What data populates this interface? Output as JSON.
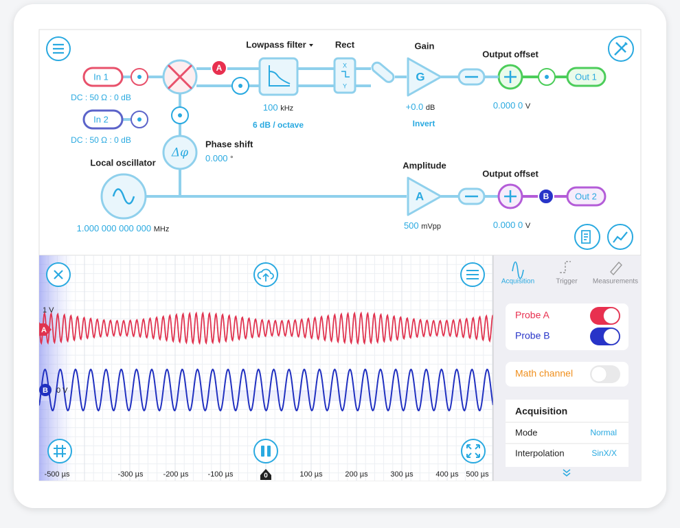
{
  "block_diagram": {
    "inputs": [
      {
        "label": "In 1",
        "coupling": "DC : 50 Ω : 0 dB",
        "color": "#e8516b"
      },
      {
        "label": "In 2",
        "coupling": "DC : 50 Ω : 0 dB",
        "color": "#5b63c9"
      }
    ],
    "probe_badges": [
      {
        "label": "A",
        "color": "#e8304f"
      },
      {
        "label": "B",
        "color": "#2734c8"
      }
    ],
    "lowpass": {
      "title": "Lowpass filter",
      "value": "100",
      "unit": "kHz",
      "slope": "6 dB / octave"
    },
    "rect": {
      "title": "Rect",
      "symbols": [
        "X",
        "Y"
      ]
    },
    "gain": {
      "title": "Gain",
      "symbol": "G",
      "value": "+0.0",
      "unit": "dB",
      "mode": "Invert"
    },
    "output_offset_1": {
      "title": "Output offset",
      "value": "0.000 0",
      "unit": "V"
    },
    "output_1": "Out 1",
    "phase_shift": {
      "title": "Phase shift",
      "symbol": "Δφ",
      "value": "0.000",
      "unit": "°"
    },
    "local_oscillator": {
      "title": "Local oscillator",
      "value": "1.000 000 000 000",
      "unit": "MHz"
    },
    "amplitude": {
      "title": "Amplitude",
      "symbol": "A",
      "value": "500",
      "unit": "mVpp"
    },
    "output_offset_2": {
      "title": "Output offset",
      "value": "0.000 0",
      "unit": "V"
    },
    "output_2": "Out 2"
  },
  "scope": {
    "y_labels": [
      "1 V",
      "0 V"
    ],
    "channel_markers": [
      "A",
      "B"
    ],
    "x_ticks": [
      "-500 µs",
      "-300 µs",
      "-200 µs",
      "-100 µs",
      "100 µs",
      "200 µs",
      "300 µs",
      "400 µs",
      "500 µs"
    ],
    "trigger_marker": "0"
  },
  "sidebar": {
    "tabs": [
      "Acquisition",
      "Trigger",
      "Measurements"
    ],
    "probes": [
      {
        "label": "Probe A",
        "on": true,
        "color": "#e8304f"
      },
      {
        "label": "Probe B",
        "on": true,
        "color": "#2734c8"
      }
    ],
    "math": {
      "label": "Math channel",
      "on": false,
      "color": "#f0901e"
    },
    "acquisition": {
      "title": "Acquisition",
      "rows": [
        [
          "Mode",
          "Normal"
        ],
        [
          "Interpolation",
          "SinX/X"
        ]
      ]
    }
  }
}
